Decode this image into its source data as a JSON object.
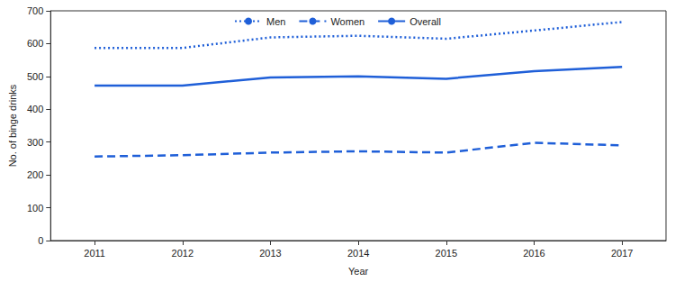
{
  "chart_data": {
    "type": "line",
    "x_label": "Year",
    "y_label": "No. of binge drinks",
    "categories": [
      "2011",
      "2012",
      "2013",
      "2014",
      "2015",
      "2016",
      "2017"
    ],
    "series": [
      {
        "name": "Men",
        "color": "#1f5fd8",
        "line_style": "dotted",
        "values": [
          587,
          587,
          619,
          624,
          615,
          640,
          666
        ]
      },
      {
        "name": "Women",
        "color": "#1f5fd8",
        "line_style": "dashed",
        "values": [
          256,
          260,
          268,
          272,
          268,
          298,
          290
        ]
      },
      {
        "name": "Overall",
        "color": "#1f5fd8",
        "line_style": "solid",
        "values": [
          472,
          472,
          497,
          500,
          493,
          516,
          529
        ]
      }
    ],
    "ylim": [
      0,
      700
    ],
    "yticks": [
      0,
      100,
      200,
      300,
      400,
      500,
      600,
      700
    ],
    "grid": false,
    "legend": "top"
  }
}
